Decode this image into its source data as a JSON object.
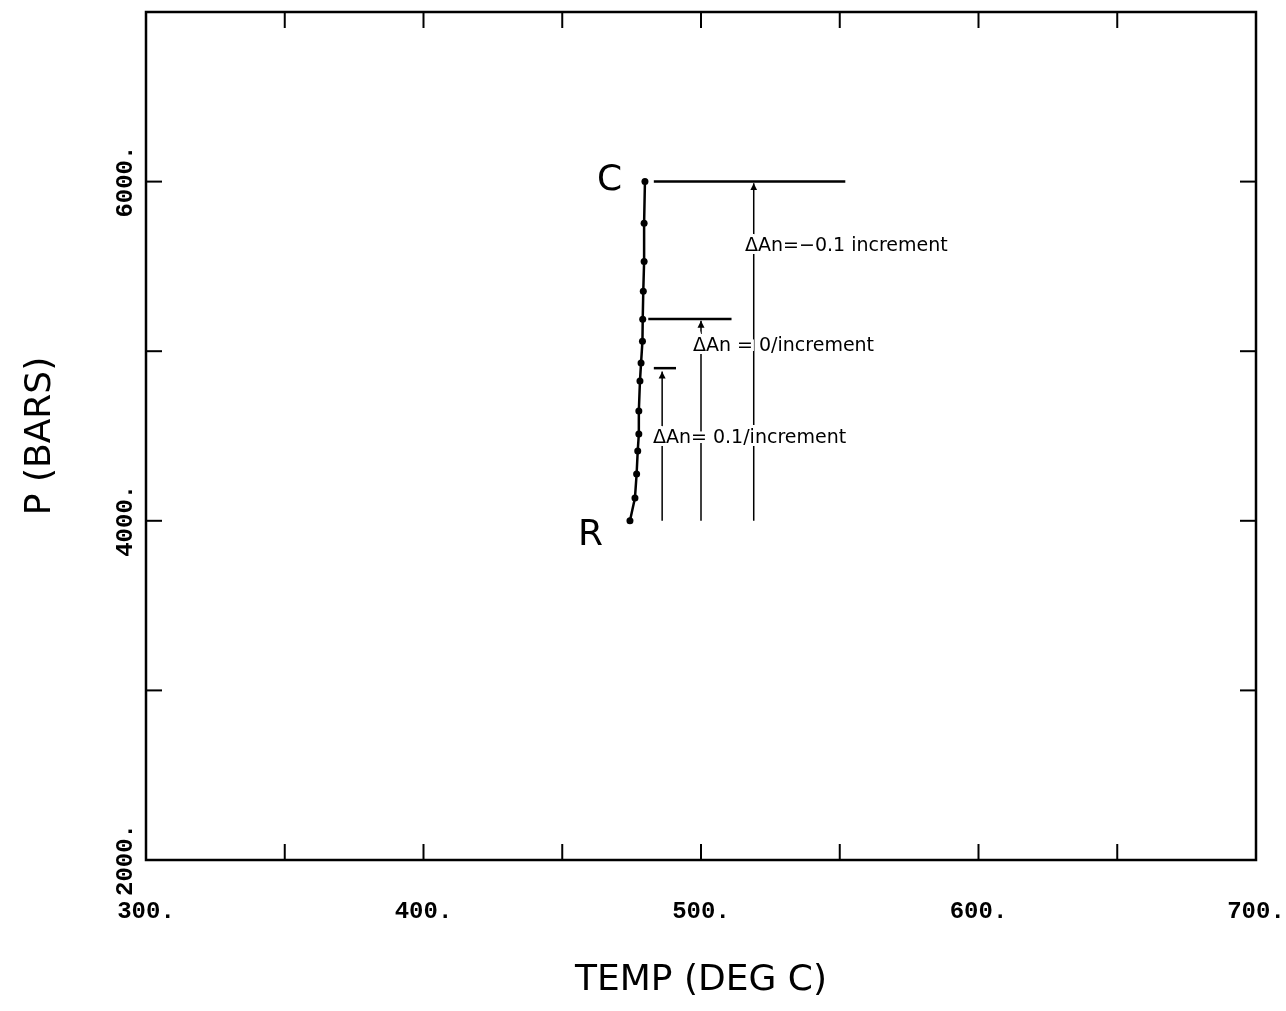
{
  "chart_data": {
    "type": "line",
    "xlabel": "TEMP (DEG C)",
    "ylabel": "P (BARS)",
    "xlim": [
      300,
      700
    ],
    "ylim": [
      2000,
      7000
    ],
    "xticks": [
      {
        "value": 300,
        "label": "300."
      },
      {
        "value": 350,
        "label": null
      },
      {
        "value": 400,
        "label": "400."
      },
      {
        "value": 450,
        "label": null
      },
      {
        "value": 500,
        "label": "500."
      },
      {
        "value": 550,
        "label": null
      },
      {
        "value": 600,
        "label": "600."
      },
      {
        "value": 650,
        "label": null
      },
      {
        "value": 700,
        "label": "700."
      }
    ],
    "yticks": [
      {
        "value": 2000,
        "label": "2000."
      },
      {
        "value": 3000,
        "label": null
      },
      {
        "value": 4000,
        "label": "4000."
      },
      {
        "value": 5000,
        "label": null
      },
      {
        "value": 6000,
        "label": "6000."
      }
    ],
    "grid": false,
    "series": [
      {
        "color": "#000000",
        "marker": "circle",
        "x": [
          474.4,
          476.2,
          476.8,
          477.2,
          477.6,
          477.6,
          478,
          478.4,
          478.9,
          479,
          479.2,
          479.5,
          479.5,
          479.8
        ],
        "values": [
          4000,
          4135,
          4276,
          4412,
          4512,
          4647,
          4824,
          4931,
          5059,
          5188,
          5353,
          5529,
          5755,
          6000
        ]
      },
      {
        "color": "#000000",
        "marker": "none",
        "x": [
          483,
          552
        ],
        "values": [
          6000,
          6000
        ]
      },
      {
        "color": "#000000",
        "marker": "none",
        "x": [
          481,
          511
        ],
        "values": [
          5190,
          5190
        ]
      },
      {
        "color": "#000000",
        "marker": "none",
        "x": [
          483,
          491
        ],
        "values": [
          4900,
          4900
        ]
      },
      {
        "color": "#000000",
        "marker": "none",
        "x": [
          486,
          486
        ],
        "values": [
          4000,
          4880
        ]
      },
      {
        "color": "#000000",
        "marker": "none",
        "x": [
          500,
          500
        ],
        "values": [
          4000,
          5180
        ]
      },
      {
        "color": "#000000",
        "marker": "none",
        "x": [
          519,
          519
        ],
        "values": [
          4000,
          5990
        ]
      }
    ],
    "annotations": [
      "C",
      "R",
      "ΔAn=−0.1 increment",
      "ΔAn = 0/increment",
      "ΔAn= 0.1/increment"
    ]
  }
}
